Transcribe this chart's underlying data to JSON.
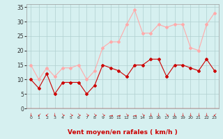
{
  "x": [
    0,
    1,
    2,
    3,
    4,
    5,
    6,
    7,
    8,
    9,
    10,
    11,
    12,
    13,
    14,
    15,
    16,
    17,
    18,
    19,
    20,
    21,
    22,
    23
  ],
  "vent_moyen": [
    10,
    7,
    12,
    5,
    9,
    9,
    9,
    5,
    8,
    15,
    14,
    13,
    11,
    15,
    15,
    17,
    17,
    11,
    15,
    15,
    14,
    13,
    17,
    13
  ],
  "rafales": [
    15,
    10,
    14,
    11,
    14,
    14,
    15,
    10,
    13,
    21,
    23,
    23,
    29,
    34,
    26,
    26,
    29,
    28,
    29,
    29,
    21,
    20,
    29,
    33
  ],
  "color_moyen": "#cc0000",
  "color_rafales": "#ffaaaa",
  "bg_color": "#d6f0f0",
  "grid_color": "#b0d0d0",
  "xlabel": "Vent moyen/en rafales ( km/h )",
  "xlabel_color": "#cc0000",
  "ylim": [
    0,
    36
  ],
  "yticks": [
    0,
    5,
    10,
    15,
    20,
    25,
    30,
    35
  ],
  "xticks": [
    0,
    1,
    2,
    3,
    4,
    5,
    6,
    7,
    8,
    9,
    10,
    11,
    12,
    13,
    14,
    15,
    16,
    17,
    18,
    19,
    20,
    21,
    22,
    23
  ],
  "arrow_chars": [
    "↓",
    "↙",
    "↙",
    "↓",
    "↘",
    "↘",
    "↘",
    "↘",
    "↘",
    "↘",
    "→",
    "→",
    "↘",
    "→",
    "↘",
    "↓",
    "↓",
    "↘",
    "↓",
    "↓",
    "↓",
    "↓",
    "↓",
    "↙"
  ]
}
